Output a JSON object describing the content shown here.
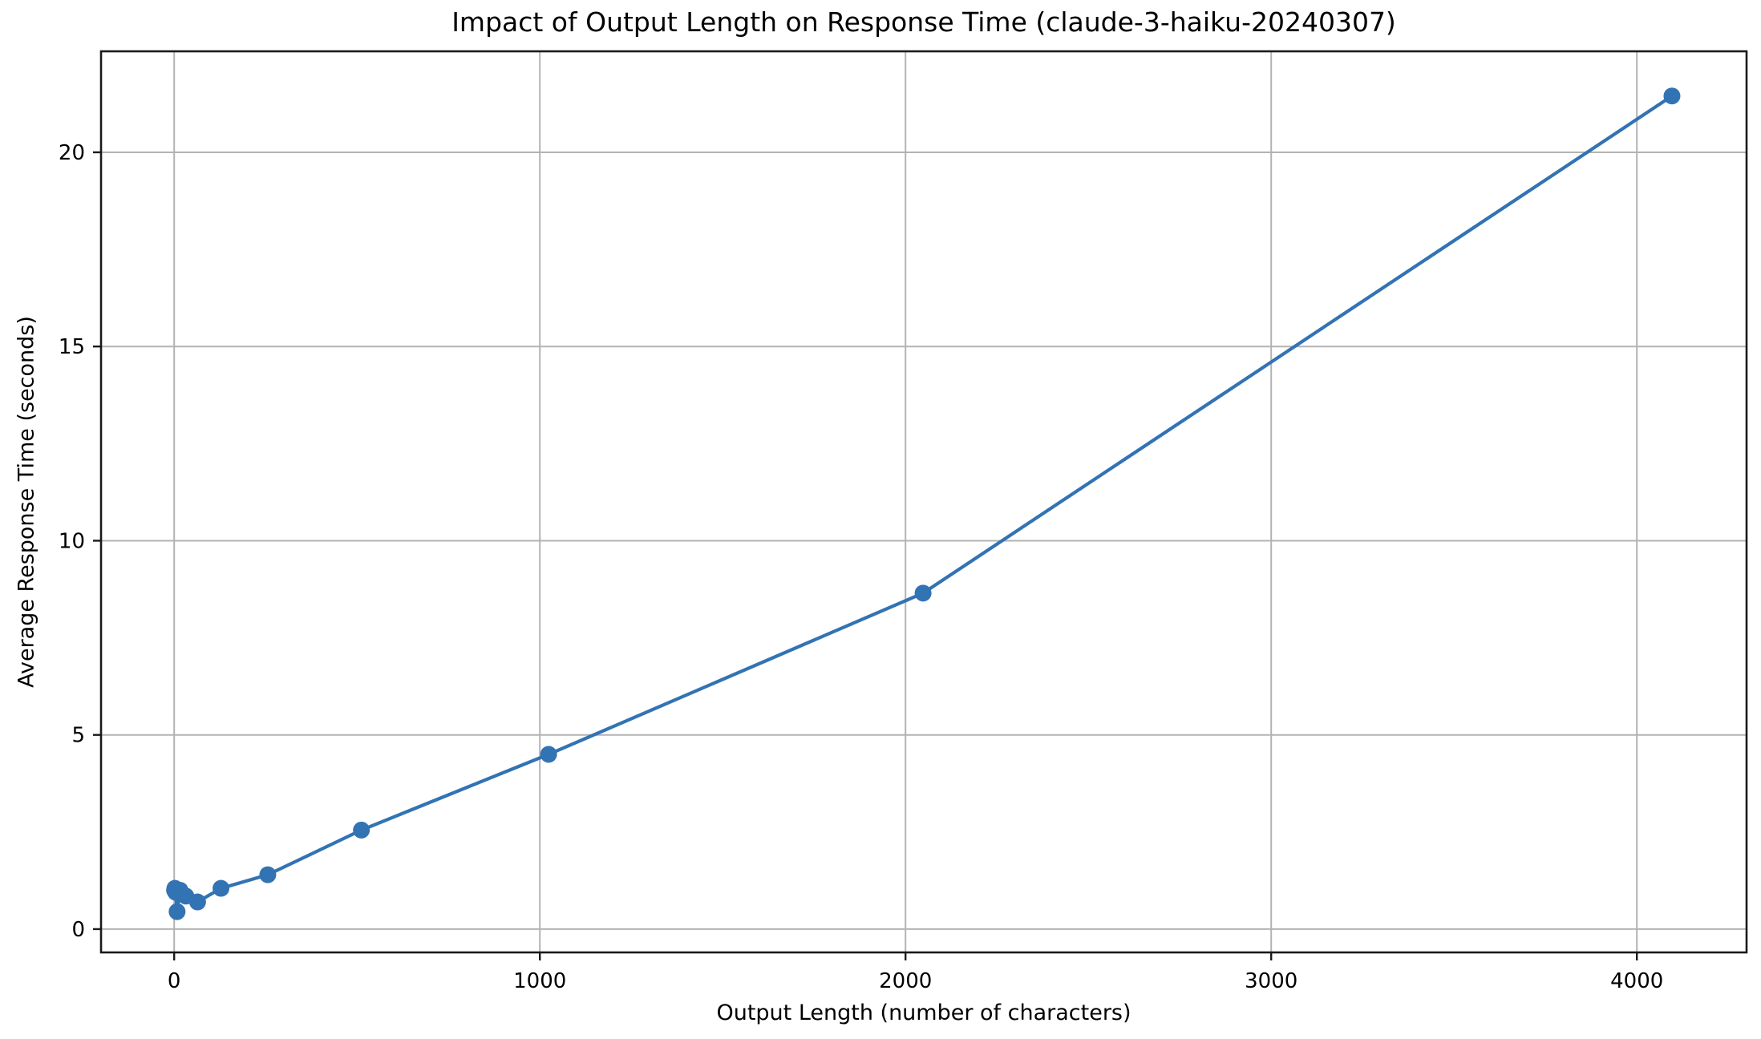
{
  "chart_data": {
    "type": "line",
    "title": "Impact of Output Length on Response Time (claude-3-haiku-20240307)",
    "xlabel": "Output Length (number of characters)",
    "ylabel": "Average Response Time (seconds)",
    "x": [
      1,
      2,
      4,
      8,
      16,
      32,
      64,
      128,
      256,
      512,
      1024,
      2048,
      4096
    ],
    "y": [
      1.0,
      1.05,
      0.95,
      0.45,
      1.0,
      0.85,
      0.7,
      1.05,
      1.4,
      2.55,
      4.5,
      8.65,
      21.45
    ],
    "xticks": [
      0,
      1000,
      2000,
      3000,
      4000
    ],
    "yticks": [
      0,
      5,
      10,
      15,
      20
    ],
    "xtick_labels": [
      "0",
      "1000",
      "2000",
      "3000",
      "4000"
    ],
    "ytick_labels": [
      "0",
      "5",
      "10",
      "15",
      "20"
    ],
    "xlim": [
      -200,
      4300
    ],
    "ylim": [
      -0.6,
      22.6
    ],
    "grid": true,
    "legend_position": "none",
    "line_color": "#3273b4",
    "marker": "o",
    "grid_color": "#b3b3b3",
    "spine_color": "#1a1a1a",
    "text_color": "#000000"
  }
}
